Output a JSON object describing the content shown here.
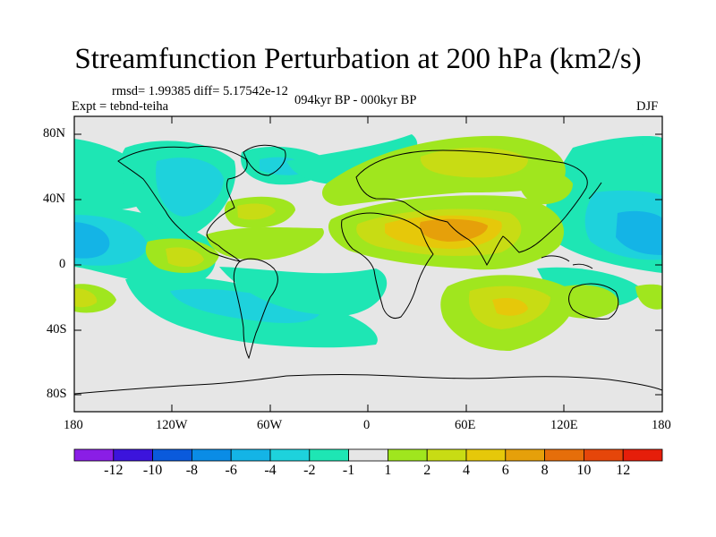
{
  "title": "Streamfunction Perturbation at 200 hPa (km2/s)",
  "stats": "rmsd= 1.99385 diff= 5.17542e-12",
  "experiment": "Expt = tebnd-teiha",
  "period": "094kyr BP - 000kyr BP",
  "season": "DJF",
  "y_ticks": [
    "80N",
    "40N",
    "0",
    "40S",
    "80S"
  ],
  "x_ticks": [
    "180",
    "120W",
    "60W",
    "0",
    "60E",
    "120E",
    "180"
  ],
  "colorbar": {
    "labels": [
      "-12",
      "-10",
      "-8",
      "-6",
      "-4",
      "-2",
      "-1",
      "1",
      "2",
      "4",
      "6",
      "8",
      "10",
      "12"
    ],
    "colors": [
      "#8a1ee6",
      "#3c14dc",
      "#0a5adc",
      "#0a8ce6",
      "#14b4e6",
      "#1ed2dc",
      "#1ee6b4",
      "#e6e6e6",
      "#a0e61e",
      "#c8dc14",
      "#e6c80a",
      "#e6a00a",
      "#e66e0a",
      "#e6460a",
      "#e61e0a"
    ]
  },
  "map_colors": {
    "background": "#e6e6e6",
    "coast": "#000000"
  }
}
